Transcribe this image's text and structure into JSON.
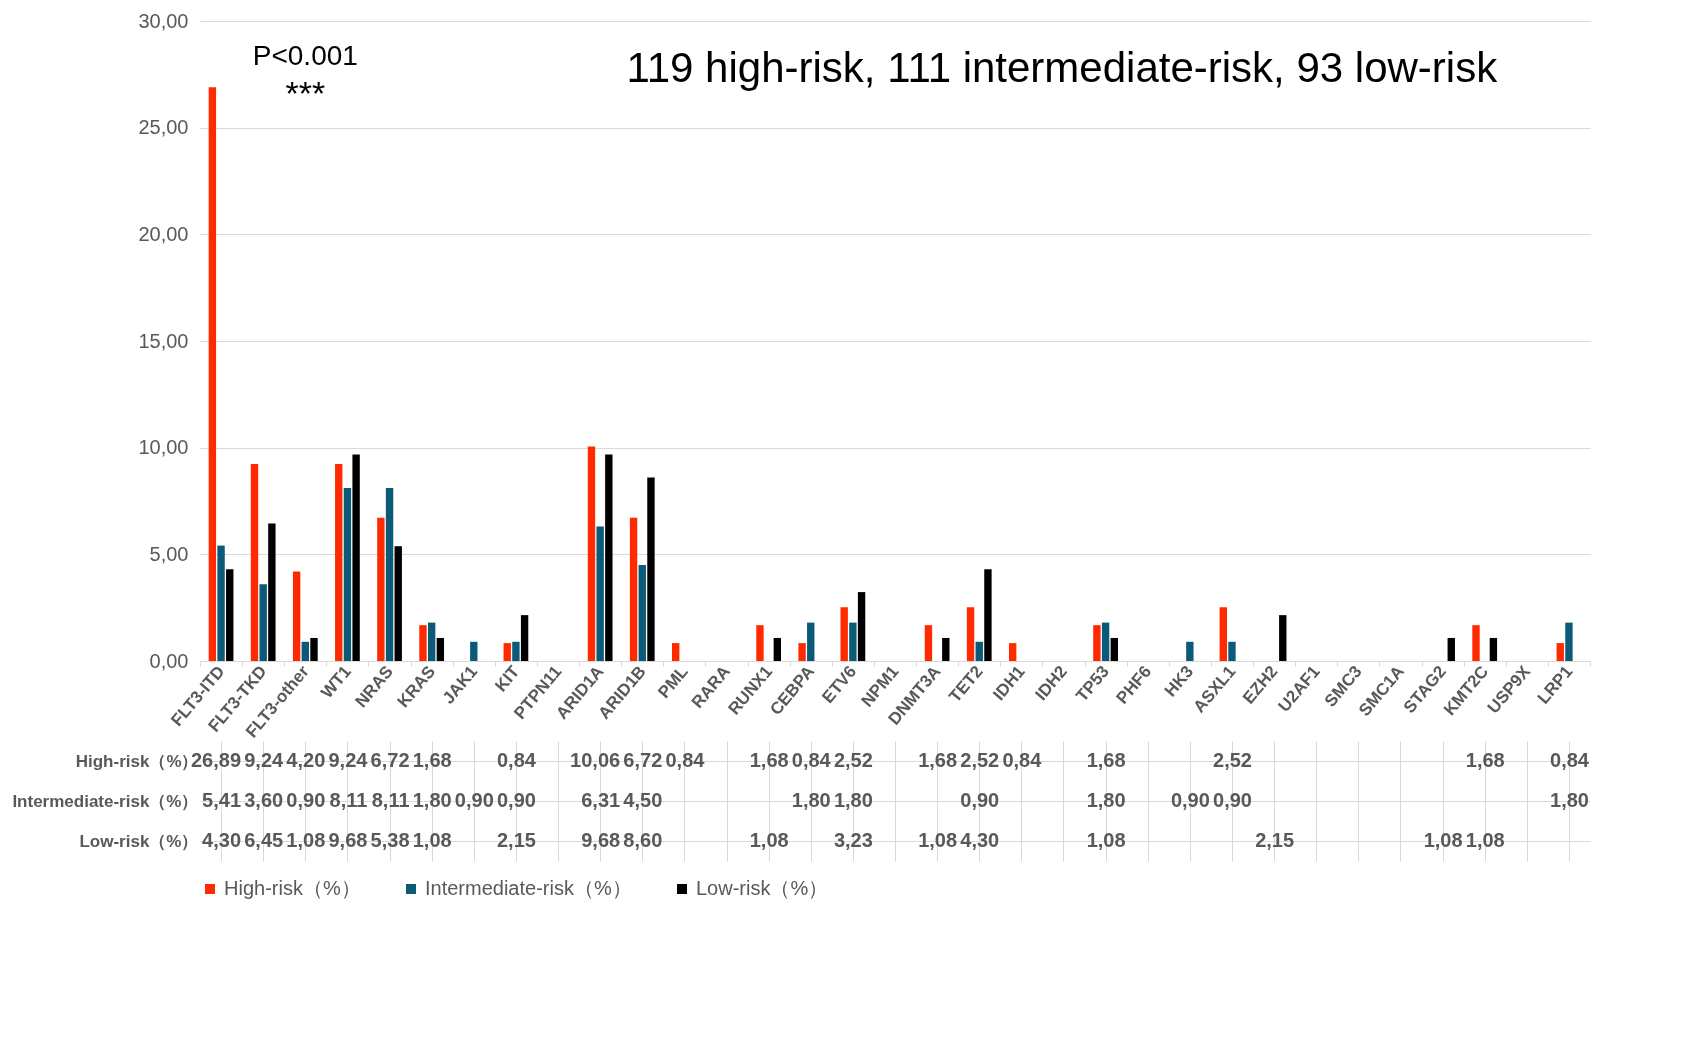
{
  "chart_data": {
    "type": "bar",
    "annotations": [
      "119 high-risk, 111 intermediate-risk, 93 low-risk",
      "P<0.001",
      "***"
    ],
    "categories": [
      "FLT3-ITD",
      "FLT3-TKD",
      "FLT3-other",
      "WT1",
      "NRAS",
      "KRAS",
      "JAK1",
      "KIT",
      "PTPN11",
      "ARID1A",
      "ARID1B",
      "PML",
      "RARA",
      "RUNX1",
      "CEBPA",
      "ETV6",
      "NPM1",
      "DNMT3A",
      "TET2",
      "IDH1",
      "IDH2",
      "TP53",
      "PHF6",
      "HK3",
      "ASXL1",
      "EZH2",
      "U2AF1",
      "SMC3",
      "SMC1A",
      "STAG2",
      "KMT2C",
      "USP9X",
      "LRP1"
    ],
    "series": [
      {
        "name": "High-risk（%）",
        "color": "#ff2a00",
        "values": [
          26.89,
          9.24,
          4.2,
          9.24,
          6.72,
          1.68,
          null,
          0.84,
          null,
          10.06,
          6.72,
          0.84,
          null,
          1.68,
          0.84,
          2.52,
          null,
          1.68,
          2.52,
          0.84,
          null,
          1.68,
          null,
          null,
          2.52,
          null,
          null,
          null,
          null,
          null,
          1.68,
          null,
          0.84
        ],
        "value_labels": [
          "26,89",
          "9,24",
          "4,20",
          "9,24",
          "6,72",
          "1,68",
          null,
          "0,84",
          null,
          "10,06",
          "6,72",
          "0,84",
          null,
          "1,68",
          "0,84",
          "2,52",
          null,
          "1,68",
          "2,52",
          "0,84",
          null,
          "1,68",
          null,
          null,
          "2,52",
          null,
          null,
          null,
          null,
          null,
          "1,68",
          null,
          "0,84"
        ]
      },
      {
        "name": "Intermediate-risk（%）",
        "color": "#0b5a78",
        "values": [
          5.41,
          3.6,
          0.9,
          8.11,
          8.11,
          1.8,
          0.9,
          0.9,
          null,
          6.31,
          4.5,
          null,
          null,
          null,
          1.8,
          1.8,
          null,
          null,
          0.9,
          null,
          null,
          1.8,
          null,
          0.9,
          0.9,
          null,
          null,
          null,
          null,
          null,
          null,
          null,
          1.8
        ],
        "value_labels": [
          "5,41",
          "3,60",
          "0,90",
          "8,11",
          "8,11",
          "1,80",
          "0,90",
          "0,90",
          null,
          "6,31",
          "4,50",
          null,
          null,
          null,
          "1,80",
          "1,80",
          null,
          null,
          "0,90",
          null,
          null,
          "1,80",
          null,
          "0,90",
          "0,90",
          null,
          null,
          null,
          null,
          null,
          null,
          null,
          "1,80"
        ]
      },
      {
        "name": "Low-risk（%）",
        "color": "#000000",
        "values": [
          4.3,
          6.45,
          1.08,
          9.68,
          5.38,
          1.08,
          null,
          2.15,
          null,
          9.68,
          8.6,
          null,
          null,
          1.08,
          null,
          3.23,
          null,
          1.08,
          4.3,
          null,
          null,
          1.08,
          null,
          null,
          null,
          2.15,
          null,
          null,
          null,
          1.08,
          1.08,
          null,
          null
        ],
        "value_labels": [
          "4,30",
          "6,45",
          "1,08",
          "9,68",
          "5,38",
          "1,08",
          null,
          "2,15",
          null,
          "9,68",
          "8,60",
          null,
          null,
          "1,08",
          null,
          "3,23",
          null,
          "1,08",
          "4,30",
          null,
          null,
          "1,08",
          null,
          null,
          null,
          "2,15",
          null,
          null,
          null,
          "1,08",
          "1,08",
          null,
          null
        ]
      }
    ],
    "ylim": [
      0,
      30
    ],
    "yticks": [
      {
        "value": 0,
        "label": "0,00"
      },
      {
        "value": 5,
        "label": "5,00"
      },
      {
        "value": 10,
        "label": "10,00"
      },
      {
        "value": 15,
        "label": "15,00"
      },
      {
        "value": 20,
        "label": "20,00"
      },
      {
        "value": 25,
        "label": "25,00"
      },
      {
        "value": 30,
        "label": "30,00"
      }
    ],
    "grid": "y",
    "legend": "bottom"
  }
}
